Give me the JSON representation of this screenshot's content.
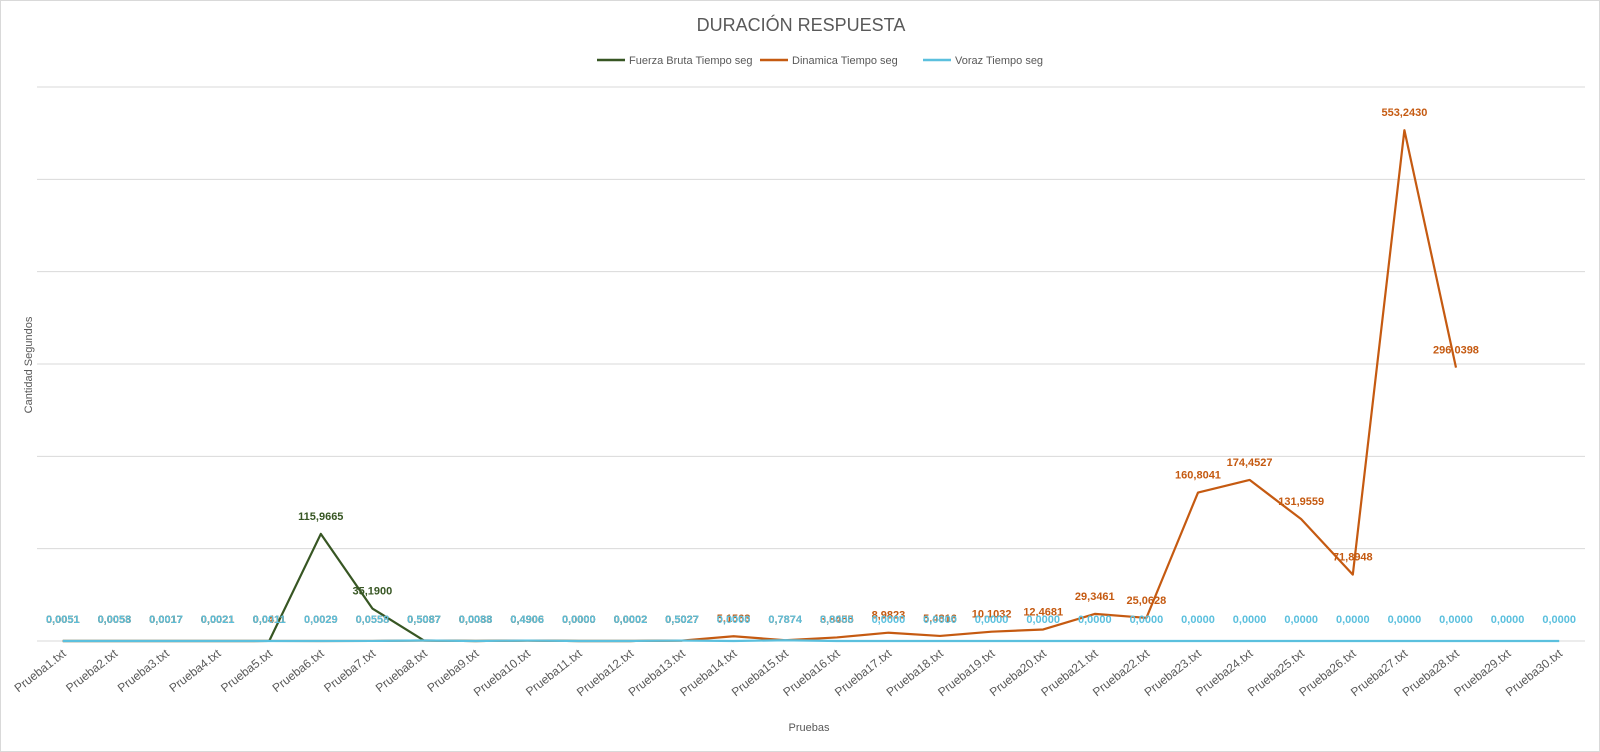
{
  "chart_data": {
    "type": "line",
    "title": "DURACIÓN RESPUESTA",
    "xlabel": "Pruebas",
    "ylabel": "Cantidad Segundos",
    "ylim": [
      0,
      600
    ],
    "grid": true,
    "legend_position": "top",
    "categories": [
      "Prueba1.txt",
      "Prueba2.txt",
      "Prueba3.txt",
      "Prueba4.txt",
      "Prueba5.txt",
      "Prueba6.txt",
      "Prueba7.txt",
      "Prueba8.txt",
      "Prueba9.txt",
      "Prueba10.txt",
      "Prueba11.txt",
      "Prueba12.txt",
      "Prueba13.txt",
      "Prueba14.txt",
      "Prueba15.txt",
      "Prueba16.txt",
      "Prueba17.txt",
      "Prueba18.txt",
      "Prueba19.txt",
      "Prueba20.txt",
      "Prueba21.txt",
      "Prueba22.txt",
      "Prueba23.txt",
      "Prueba24.txt",
      "Prueba25.txt",
      "Prueba26.txt",
      "Prueba27.txt",
      "Prueba28.txt",
      "Prueba29.txt",
      "Prueba30.txt"
    ],
    "series": [
      {
        "name": "Fuerza Bruta Tiempo seg",
        "color": "#375623",
        "values": [
          0.0051,
          0.0053,
          0.0017,
          0.0021,
          0.0411,
          115.9665,
          35.19,
          0.5087,
          0.0033,
          0.4906,
          0.0,
          0.0002,
          0.5027,
          null,
          null,
          null,
          null,
          null,
          null,
          null,
          null,
          null,
          null,
          null,
          null,
          null,
          null,
          null,
          null,
          null
        ],
        "labels": [
          "0,0051",
          "0,0053",
          "0,0017",
          "0,0021",
          "0,0411",
          "115,9665",
          "35,1900",
          "0,5087",
          "0,0033",
          "0,4906",
          "0,0000",
          "0,0002",
          "0,5027",
          "",
          "",
          "",
          "",
          "",
          "",
          "",
          "",
          "",
          "",
          "",
          "",
          "",
          "",
          "",
          "",
          ""
        ]
      },
      {
        "name": "Dinamica Tiempo seg",
        "color": "#c55a11",
        "values": [
          0.0051,
          0.0058,
          0.0017,
          0.0021,
          0.0411,
          0.0029,
          0.0558,
          0.5087,
          0.0088,
          0.4906,
          0.0,
          0.0002,
          0.5027,
          5.1563,
          0.7874,
          3.8455,
          8.9823,
          5.4816,
          10.1032,
          12.4681,
          29.3461,
          25.0628,
          160.8041,
          174.4527,
          131.9559,
          71.8948,
          553.243,
          296.0398,
          null,
          null
        ],
        "labels": [
          "0,0051",
          "0,0058",
          "0,0017",
          "0,0021",
          "0,0411",
          "0,0029",
          "0,0558",
          "0,5087",
          "0,0088",
          "0,4906",
          "0,0000",
          "0,0002",
          "0,5027",
          "5,1563",
          "0,7874",
          "3,8455",
          "8,9823",
          "5,4816",
          "10,1032",
          "12,4681",
          "29,3461",
          "25,0628",
          "160,8041",
          "174,4527",
          "131,9559",
          "71,8948",
          "553,2430",
          "296,0398",
          "",
          ""
        ]
      },
      {
        "name": "Voraz Tiempo seg",
        "color": "#5bc0de",
        "values": [
          0.0051,
          0.0058,
          0.0017,
          0.0021,
          0.0011,
          0.0029,
          0.0558,
          0.5087,
          0.0088,
          0.4906,
          0.0,
          0.0002,
          0.5027,
          0.0,
          0.7874,
          0.0,
          0.0,
          0.0,
          0.0,
          0.0,
          0.0,
          0.0,
          0.0,
          0.0,
          0.0,
          0.0,
          0.0,
          0.0,
          0.0,
          0.0
        ],
        "labels": [
          "0,0051",
          "0,0058",
          "0,0017",
          "0,0021",
          "0,0011",
          "0,0029",
          "0,0558",
          "0,5087",
          "0,0088",
          "0,4906",
          "0,0000",
          "0,0002",
          "0,5027",
          "0,0000",
          "0,7874",
          "0,0000",
          "0,0000",
          "0,0000",
          "0,0000",
          "0,0000",
          "0,0000",
          "0,0000",
          "0,0000",
          "0,0000",
          "0,0000",
          "0,0000",
          "0,0000",
          "0,0000",
          "0,0000",
          "0,0000"
        ]
      }
    ]
  }
}
